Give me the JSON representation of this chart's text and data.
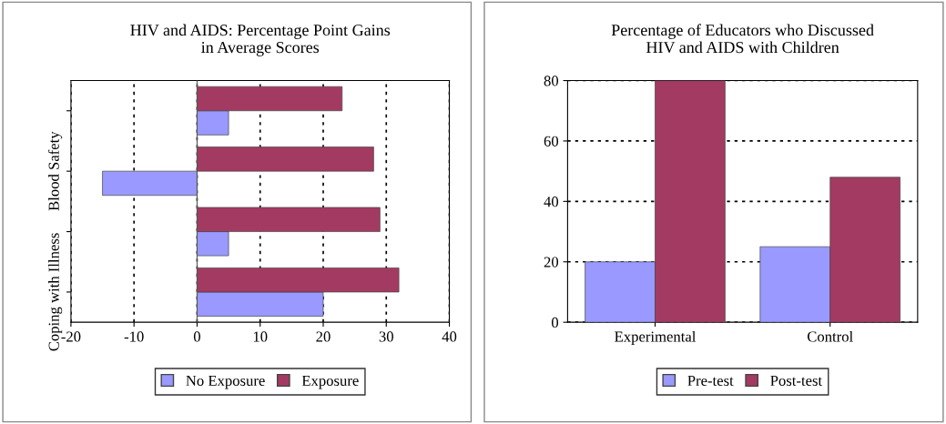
{
  "chart_data": [
    {
      "type": "bar",
      "orientation": "horizontal",
      "title": "HIV and AIDS: Percentage Point Gains\nin Average Scores",
      "categories": [
        null,
        "Blood Safety",
        null,
        "Coping with Illness"
      ],
      "series": [
        {
          "name": "No Exposure",
          "color": "#9999ff",
          "values": [
            5,
            -15,
            5,
            20
          ]
        },
        {
          "name": "Exposure",
          "color": "#a33a62",
          "values": [
            23,
            28,
            29,
            32
          ]
        }
      ],
      "xlim": [
        -20,
        40
      ],
      "xticks": [
        -20,
        -10,
        0,
        10,
        20,
        30,
        40
      ],
      "grid": "x",
      "legend": "bottom"
    },
    {
      "type": "bar",
      "title": "Percentage of Educators who Discussed\nHIV and AIDS with Children",
      "categories": [
        "Experimental",
        "Control"
      ],
      "series": [
        {
          "name": "Pre-test",
          "color": "#9999ff",
          "values": [
            20,
            25
          ]
        },
        {
          "name": "Post-test",
          "color": "#a33a62",
          "values": [
            80,
            48
          ]
        }
      ],
      "ylim": [
        0,
        80
      ],
      "yticks": [
        0,
        20,
        40,
        60,
        80
      ],
      "grid": "y",
      "legend": "bottom"
    }
  ]
}
